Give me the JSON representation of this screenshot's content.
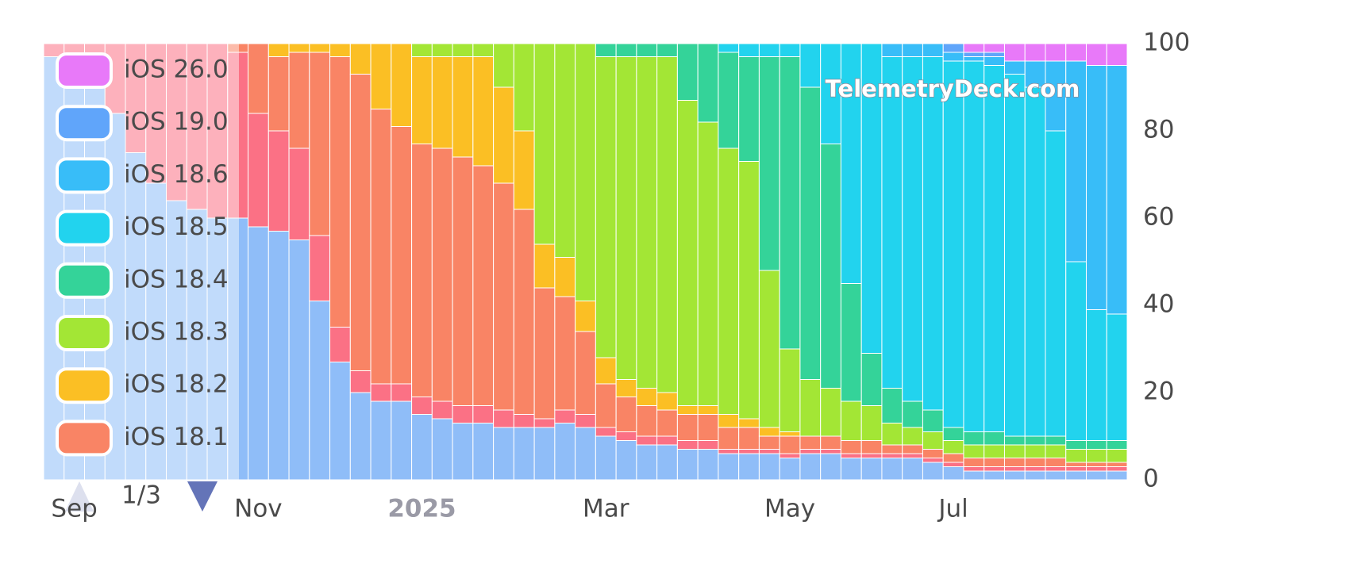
{
  "chart_data": {
    "type": "bar",
    "stacked": true,
    "watermark": "TelemetryDeck.com",
    "legend_page": "1/3",
    "categories": [
      null,
      "Sep",
      null,
      null,
      null,
      null,
      null,
      null,
      null,
      null,
      "Nov",
      null,
      null,
      null,
      null,
      null,
      null,
      null,
      "2025",
      null,
      null,
      null,
      null,
      null,
      null,
      null,
      null,
      "Mar",
      null,
      null,
      null,
      null,
      null,
      null,
      null,
      null,
      "May",
      null,
      null,
      null,
      null,
      null,
      null,
      null,
      "Jul",
      null,
      null,
      null,
      null,
      null,
      null,
      null,
      null
    ],
    "series": [
      {
        "color": "#8fbdf8",
        "values": [
          97,
          95,
          92,
          84,
          75,
          68,
          64,
          62,
          60,
          60,
          58,
          57,
          55,
          41,
          27,
          20,
          18,
          18,
          15,
          14,
          13,
          13,
          12,
          12,
          12,
          13,
          12,
          10,
          9,
          8,
          8,
          7,
          7,
          6,
          6,
          6,
          5,
          6,
          6,
          5,
          5,
          5,
          5,
          4,
          3,
          2,
          2,
          2,
          2,
          2,
          2,
          2,
          2
        ]
      },
      {
        "color": "#fb7185",
        "values": [
          3,
          5,
          8,
          16,
          25,
          32,
          36,
          38,
          40,
          38,
          26,
          23,
          21,
          15,
          8,
          5,
          4,
          4,
          4,
          4,
          4,
          4,
          4,
          3,
          2,
          3,
          3,
          2,
          2,
          2,
          2,
          2,
          2,
          1,
          1,
          1,
          1,
          1,
          1,
          1,
          1,
          1,
          1,
          1,
          1,
          1,
          1,
          1,
          1,
          1,
          1,
          1,
          1
        ]
      },
      {
        "name": "iOS 18.1",
        "color": "#f98465",
        "values": [
          0,
          0,
          0,
          0,
          0,
          0,
          0,
          0,
          0,
          2,
          16,
          17,
          22,
          42,
          62,
          68,
          63,
          59,
          58,
          58,
          57,
          55,
          52,
          47,
          30,
          26,
          19,
          10,
          8,
          7,
          6,
          6,
          6,
          5,
          5,
          3,
          4,
          3,
          3,
          3,
          3,
          2,
          2,
          2,
          2,
          2,
          2,
          2,
          2,
          2,
          1,
          1,
          1
        ]
      },
      {
        "name": "iOS 18.2",
        "color": "#fbbf24",
        "values": [
          0,
          0,
          0,
          0,
          0,
          0,
          0,
          0,
          0,
          0,
          0,
          3,
          2,
          2,
          3,
          7,
          15,
          19,
          20,
          21,
          23,
          25,
          22,
          18,
          10,
          9,
          7,
          6,
          4,
          4,
          4,
          2,
          2,
          3,
          2,
          2,
          1,
          0,
          0,
          0,
          0,
          0,
          0,
          0,
          0,
          0,
          0,
          0,
          0,
          0,
          0,
          0,
          0
        ]
      },
      {
        "name": "iOS 18.3",
        "color": "#a3e635",
        "values": [
          0,
          0,
          0,
          0,
          0,
          0,
          0,
          0,
          0,
          0,
          0,
          0,
          0,
          0,
          0,
          0,
          0,
          0,
          3,
          3,
          3,
          3,
          10,
          20,
          46,
          49,
          59,
          69,
          74,
          76,
          77,
          70,
          65,
          61,
          59,
          36,
          19,
          13,
          11,
          9,
          8,
          5,
          4,
          4,
          3,
          3,
          3,
          3,
          3,
          3,
          3,
          3,
          3
        ]
      },
      {
        "name": "iOS 18.4",
        "color": "#34d399",
        "values": [
          0,
          0,
          0,
          0,
          0,
          0,
          0,
          0,
          0,
          0,
          0,
          0,
          0,
          0,
          0,
          0,
          0,
          0,
          0,
          0,
          0,
          0,
          0,
          0,
          0,
          0,
          0,
          3,
          3,
          3,
          3,
          13,
          18,
          22,
          24,
          49,
          67,
          67,
          56,
          27,
          12,
          8,
          6,
          5,
          3,
          3,
          3,
          2,
          2,
          2,
          2,
          2,
          2
        ]
      },
      {
        "name": "iOS 18.5",
        "color": "#22d3ee",
        "values": [
          0,
          0,
          0,
          0,
          0,
          0,
          0,
          0,
          0,
          0,
          0,
          0,
          0,
          0,
          0,
          0,
          0,
          0,
          0,
          0,
          0,
          0,
          0,
          0,
          0,
          0,
          0,
          0,
          0,
          0,
          0,
          0,
          0,
          2,
          3,
          3,
          3,
          10,
          23,
          55,
          71,
          76,
          79,
          81,
          84,
          85,
          84,
          83,
          80,
          70,
          41,
          30,
          29
        ]
      },
      {
        "name": "iOS 18.6",
        "color": "#38bdf8",
        "values": [
          0,
          0,
          0,
          0,
          0,
          0,
          0,
          0,
          0,
          0,
          0,
          0,
          0,
          0,
          0,
          0,
          0,
          0,
          0,
          0,
          0,
          0,
          0,
          0,
          0,
          0,
          0,
          0,
          0,
          0,
          0,
          0,
          0,
          0,
          0,
          0,
          0,
          0,
          0,
          0,
          0,
          3,
          3,
          3,
          2,
          1,
          2,
          3,
          6,
          16,
          46,
          56,
          57
        ]
      },
      {
        "name": "iOS 19.0",
        "color": "#60a5fa",
        "values": [
          0,
          0,
          0,
          0,
          0,
          0,
          0,
          0,
          0,
          0,
          0,
          0,
          0,
          0,
          0,
          0,
          0,
          0,
          0,
          0,
          0,
          0,
          0,
          0,
          0,
          0,
          0,
          0,
          0,
          0,
          0,
          0,
          0,
          0,
          0,
          0,
          0,
          0,
          0,
          0,
          0,
          0,
          0,
          0,
          2,
          1,
          1,
          0,
          0,
          0,
          0,
          0,
          0
        ]
      },
      {
        "name": "iOS 26.0",
        "color": "#e879f9",
        "values": [
          0,
          0,
          0,
          0,
          0,
          0,
          0,
          0,
          0,
          0,
          0,
          0,
          0,
          0,
          0,
          0,
          0,
          0,
          0,
          0,
          0,
          0,
          0,
          0,
          0,
          0,
          0,
          0,
          0,
          0,
          0,
          0,
          0,
          0,
          0,
          0,
          0,
          0,
          0,
          0,
          0,
          0,
          0,
          0,
          0,
          2,
          2,
          4,
          4,
          4,
          4,
          5,
          5
        ]
      }
    ],
    "ylim": [
      0,
      100
    ],
    "yticks": [
      0,
      20,
      40,
      60,
      80,
      100
    ]
  }
}
